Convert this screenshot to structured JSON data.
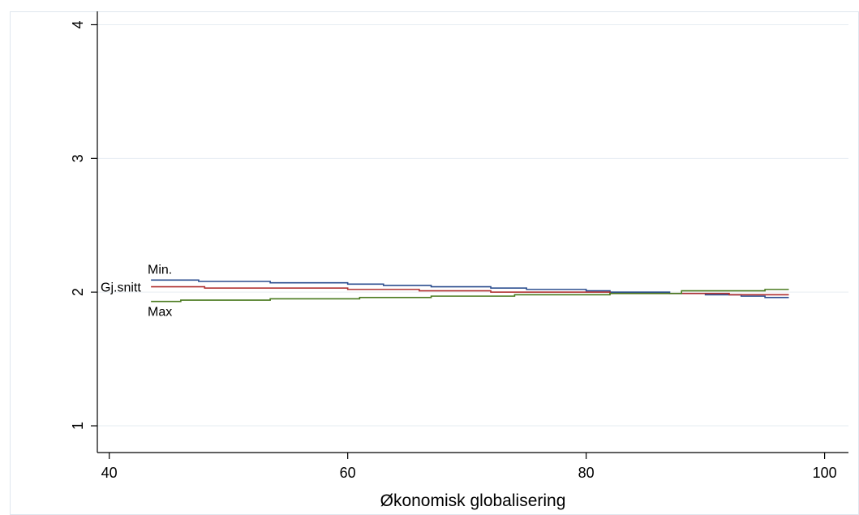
{
  "chart_data": {
    "type": "line",
    "title": "",
    "xlabel": "Økonomisk globalisering",
    "ylabel": "",
    "xlim": [
      39,
      102
    ],
    "ylim": [
      0.8,
      4.1
    ],
    "x_ticks": [
      40,
      60,
      80,
      100
    ],
    "x_tick_labels": [
      "40",
      "60",
      "80",
      "100"
    ],
    "y_ticks": [
      1,
      2,
      3,
      4
    ],
    "y_tick_labels": [
      "1",
      "2",
      "3",
      "4"
    ],
    "grid": true,
    "legend": "none",
    "series": [
      {
        "name": "Min.",
        "color": "#2b4d8f",
        "step": true,
        "x": [
          43.5,
          47.5,
          53.5,
          60,
          63,
          67,
          72,
          75,
          80,
          82,
          87,
          90,
          93,
          95,
          97
        ],
        "y": [
          2.09,
          2.08,
          2.07,
          2.06,
          2.05,
          2.04,
          2.03,
          2.02,
          2.01,
          2.0,
          1.99,
          1.98,
          1.97,
          1.96,
          1.96
        ]
      },
      {
        "name": "Gj.snitt",
        "color": "#b03030",
        "step": true,
        "x": [
          43.5,
          48,
          60,
          66,
          72,
          78,
          82,
          88,
          92,
          97
        ],
        "y": [
          2.04,
          2.03,
          2.02,
          2.01,
          2.0,
          2.0,
          1.99,
          1.99,
          1.98,
          1.98
        ]
      },
      {
        "name": "Max",
        "color": "#4a7a1e",
        "step": true,
        "x": [
          43.5,
          46,
          53.5,
          61,
          67,
          74,
          82,
          88,
          95,
          97
        ],
        "y": [
          1.93,
          1.94,
          1.95,
          1.96,
          1.97,
          1.98,
          1.99,
          2.01,
          2.02,
          2.02
        ]
      }
    ]
  }
}
